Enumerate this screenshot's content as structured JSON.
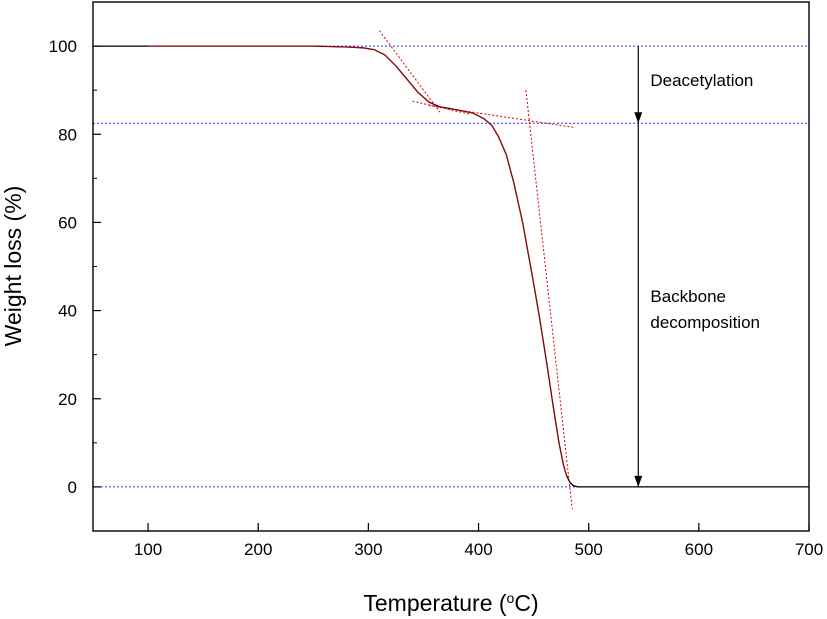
{
  "chart_data": {
    "type": "line",
    "title": "",
    "xlabel": "Temperature (",
    "xlabel_unit": "o",
    "xlabel_suffix": "C)",
    "ylabel": "Weight loss (%)",
    "xlim": [
      50,
      700
    ],
    "ylim": [
      -10,
      110
    ],
    "xticks": [
      100,
      200,
      300,
      400,
      500,
      600,
      700
    ],
    "yticks": [
      0,
      20,
      40,
      60,
      80,
      100
    ],
    "grid": false,
    "colors": {
      "curve": "#000000",
      "fit": "#dd0000",
      "reference": "#3333ee",
      "axes": "#000000"
    },
    "series": [
      {
        "x": [
          50,
          100,
          200,
          250,
          280,
          295,
          305,
          315,
          325,
          335,
          345,
          355,
          365,
          375,
          385,
          395,
          405,
          412,
          418,
          425,
          432,
          440,
          448,
          455,
          462,
          468,
          473,
          477,
          480,
          483,
          486,
          490,
          495,
          500,
          550,
          600,
          650,
          700
        ],
        "y": [
          100,
          100,
          100,
          100,
          99.8,
          99.6,
          99.2,
          98,
          95.5,
          92.5,
          89.5,
          87.3,
          86.2,
          85.8,
          85.3,
          84.8,
          83.5,
          82,
          79.5,
          75.5,
          69,
          60,
          49,
          39,
          28,
          18,
          10,
          5,
          2.5,
          1,
          0.3,
          0,
          0,
          0,
          0,
          0,
          0,
          0
        ]
      }
    ],
    "tangent_lines": [
      {
        "x": [
          310,
          365
        ],
        "y": [
          103.5,
          85
        ]
      },
      {
        "x": [
          340,
          393
        ],
        "y": [
          87.5,
          84.5
        ]
      },
      {
        "x": [
          355,
          488
        ],
        "y": [
          86.5,
          81.5
        ]
      },
      {
        "x": [
          443,
          485
        ],
        "y": [
          90,
          -5
        ]
      }
    ],
    "reference_lines_y": [
      100,
      82.5,
      0
    ],
    "arrow": {
      "x": 545,
      "top_y": 100,
      "mid_y": 82.5,
      "bottom_y": 0
    },
    "annotations": [
      {
        "lines": [
          "Deacetylation"
        ],
        "x": 556,
        "y": 91
      },
      {
        "lines": [
          "Backbone",
          "decomposition"
        ],
        "x": 556,
        "y": 42
      }
    ]
  }
}
